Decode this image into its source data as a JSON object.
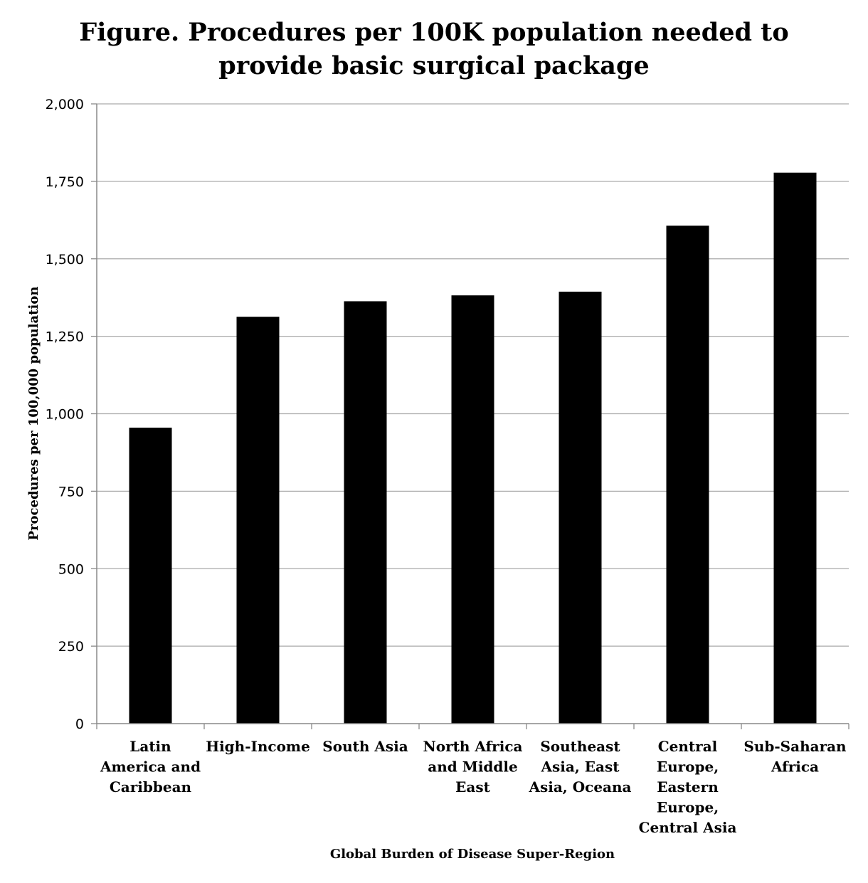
{
  "chart_data": {
    "type": "bar",
    "title_lines": [
      "Figure. Procedures per 100K population needed to",
      "provide basic surgical package"
    ],
    "categories": [
      [
        "Latin",
        "America and",
        "Caribbean"
      ],
      [
        "High-Income"
      ],
      [
        "South Asia"
      ],
      [
        "North Africa",
        "and Middle",
        "East"
      ],
      [
        "Southeast",
        "Asia, East",
        "Asia, Oceana"
      ],
      [
        "Central",
        "Europe,",
        "Eastern",
        "Europe,",
        "Central Asia"
      ],
      [
        "Sub-Saharan",
        "Africa"
      ]
    ],
    "values": [
      955,
      1313,
      1363,
      1382,
      1394,
      1607,
      1778
    ],
    "xlabel": "Global Burden of Disease Super-Region",
    "ylabel": "Procedures per 100,000 population",
    "ylim": [
      0,
      2000
    ],
    "yticks": [
      0,
      250,
      500,
      750,
      1000,
      1250,
      1500,
      1750,
      2000
    ],
    "ytick_labels": [
      "0",
      "250",
      "500",
      "750",
      "1,000",
      "1,250",
      "1,500",
      "1,750",
      "2,000"
    ],
    "grid": true,
    "legend": "none",
    "bar_color": "#000000",
    "grid_color": "#aaaaaa"
  }
}
